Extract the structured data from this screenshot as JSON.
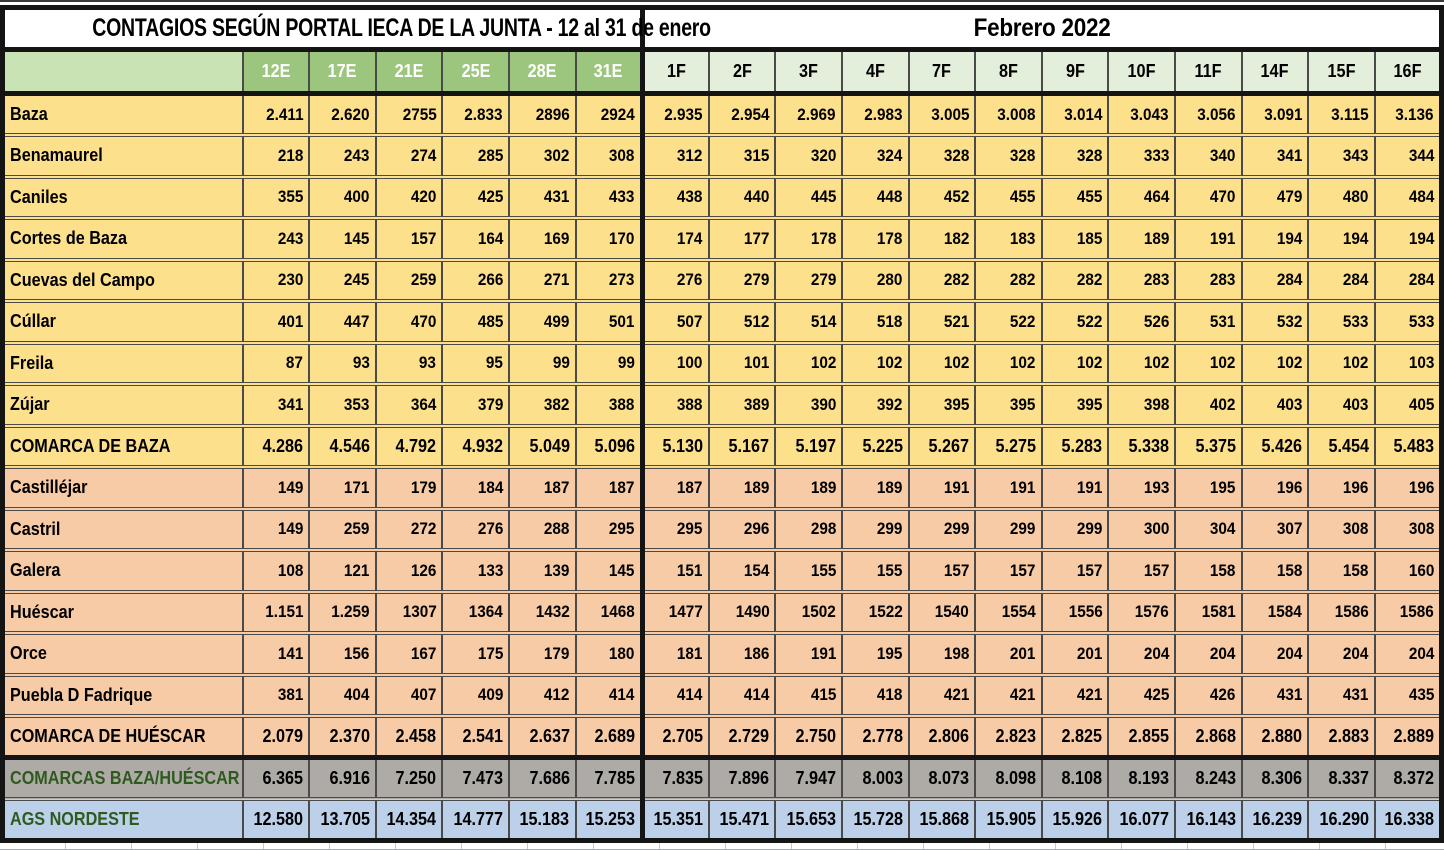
{
  "header": {
    "enero_title": "CONTAGIOS  SEGÚN PORTAL IECA DE LA JUNTA - 12 al 31 de enero",
    "febrero_title": "Febrero 2022"
  },
  "colors": {
    "enero_header_bg": "#9CC57E",
    "enero_header_text": "#FFFFFF",
    "febrero_header_bg": "#E3EFDA",
    "corner_bg": "#C9E3B4",
    "baza_bg": "#FCE08C",
    "huescar_bg": "#F7CBA5",
    "combined_bg": "#AEABA7",
    "ags_bg": "#BDD0E9",
    "total_green_text": "#2F5A1F",
    "grid_line": "#4A4A4A",
    "thick_line": "#141414",
    "text": "#000000"
  },
  "chart_data": {
    "type": "table",
    "title": "CONTAGIOS SEGÚN PORTAL IECA DE LA JUNTA - 12 al 31 de enero / Febrero 2022",
    "columns_enero": [
      "12E",
      "17E",
      "21E",
      "25E",
      "28E",
      "31E"
    ],
    "columns_febrero": [
      "1F",
      "2F",
      "3F",
      "4F",
      "7F",
      "8F",
      "9F",
      "10F",
      "11F",
      "14F",
      "15F",
      "16F"
    ],
    "rows": [
      {
        "label": "Baza",
        "style": "m-baza",
        "values": [
          "2.411",
          "2.620",
          "2755",
          "2.833",
          "2896",
          "2924",
          "2.935",
          "2.954",
          "2.969",
          "2.983",
          "3.005",
          "3.008",
          "3.014",
          "3.043",
          "3.056",
          "3.091",
          "3.115",
          "3.136"
        ]
      },
      {
        "label": "Benamaurel",
        "style": "m-baza",
        "values": [
          "218",
          "243",
          "274",
          "285",
          "302",
          "308",
          "312",
          "315",
          "320",
          "324",
          "328",
          "328",
          "328",
          "333",
          "340",
          "341",
          "343",
          "344"
        ]
      },
      {
        "label": "Caniles",
        "style": "m-baza",
        "values": [
          "355",
          "400",
          "420",
          "425",
          "431",
          "433",
          "438",
          "440",
          "445",
          "448",
          "452",
          "455",
          "455",
          "464",
          "470",
          "479",
          "480",
          "484"
        ]
      },
      {
        "label": "Cortes de Baza",
        "style": "m-baza",
        "values": [
          "243",
          "145",
          "157",
          "164",
          "169",
          "170",
          "174",
          "177",
          "178",
          "178",
          "182",
          "183",
          "185",
          "189",
          "191",
          "194",
          "194",
          "194"
        ]
      },
      {
        "label": "Cuevas del Campo",
        "style": "m-baza",
        "values": [
          "230",
          "245",
          "259",
          "266",
          "271",
          "273",
          "276",
          "279",
          "279",
          "280",
          "282",
          "282",
          "282",
          "283",
          "283",
          "284",
          "284",
          "284"
        ]
      },
      {
        "label": "Cúllar",
        "style": "m-baza",
        "values": [
          "401",
          "447",
          "470",
          "485",
          "499",
          "501",
          "507",
          "512",
          "514",
          "518",
          "521",
          "522",
          "522",
          "526",
          "531",
          "532",
          "533",
          "533"
        ]
      },
      {
        "label": "Freila",
        "style": "m-baza",
        "values": [
          "87",
          "93",
          "93",
          "95",
          "99",
          "99",
          "100",
          "101",
          "102",
          "102",
          "102",
          "102",
          "102",
          "102",
          "102",
          "102",
          "102",
          "103"
        ]
      },
      {
        "label": "Zújar",
        "style": "m-baza",
        "values": [
          "341",
          "353",
          "364",
          "379",
          "382",
          "388",
          "388",
          "389",
          "390",
          "392",
          "395",
          "395",
          "395",
          "398",
          "402",
          "403",
          "403",
          "405"
        ]
      },
      {
        "label": "COMARCA DE BAZA",
        "style": "t-baza",
        "values": [
          "4.286",
          "4.546",
          "4.792",
          "4.932",
          "5.049",
          "5.096",
          "5.130",
          "5.167",
          "5.197",
          "5.225",
          "5.267",
          "5.275",
          "5.283",
          "5.338",
          "5.375",
          "5.426",
          "5.454",
          "5.483"
        ]
      },
      {
        "label": "Castilléjar",
        "style": "m-hue",
        "values": [
          "149",
          "171",
          "179",
          "184",
          "187",
          "187",
          "187",
          "189",
          "189",
          "189",
          "191",
          "191",
          "191",
          "193",
          "195",
          "196",
          "196",
          "196"
        ]
      },
      {
        "label": "Castril",
        "style": "m-hue",
        "values": [
          "149",
          "259",
          "272",
          "276",
          "288",
          "295",
          "295",
          "296",
          "298",
          "299",
          "299",
          "299",
          "299",
          "300",
          "304",
          "307",
          "308",
          "308"
        ]
      },
      {
        "label": "Galera",
        "style": "m-hue",
        "values": [
          "108",
          "121",
          "126",
          "133",
          "139",
          "145",
          "151",
          "154",
          "155",
          "155",
          "157",
          "157",
          "157",
          "157",
          "158",
          "158",
          "158",
          "160"
        ]
      },
      {
        "label": "Huéscar",
        "style": "m-hue",
        "values": [
          "1.151",
          "1.259",
          "1307",
          "1364",
          "1432",
          "1468",
          "1477",
          "1490",
          "1502",
          "1522",
          "1540",
          "1554",
          "1556",
          "1576",
          "1581",
          "1584",
          "1586",
          "1586"
        ]
      },
      {
        "label": "Orce",
        "style": "m-hue",
        "values": [
          "141",
          "156",
          "167",
          "175",
          "179",
          "180",
          "181",
          "186",
          "191",
          "195",
          "198",
          "201",
          "201",
          "204",
          "204",
          "204",
          "204",
          "204"
        ]
      },
      {
        "label": "Puebla D Fadrique",
        "style": "m-hue",
        "values": [
          "381",
          "404",
          "407",
          "409",
          "412",
          "414",
          "414",
          "414",
          "415",
          "418",
          "421",
          "421",
          "421",
          "425",
          "426",
          "431",
          "431",
          "435"
        ]
      },
      {
        "label": "COMARCA DE HUÉSCAR",
        "style": "t-hue",
        "values": [
          "2.079",
          "2.370",
          "2.458",
          "2.541",
          "2.637",
          "2.689",
          "2.705",
          "2.729",
          "2.750",
          "2.778",
          "2.806",
          "2.823",
          "2.825",
          "2.855",
          "2.868",
          "2.880",
          "2.883",
          "2.889"
        ]
      },
      {
        "label": "COMARCAS BAZA/HUÉSCAR",
        "style": "t-comb",
        "values": [
          "6.365",
          "6.916",
          "7.250",
          "7.473",
          "7.686",
          "7.785",
          "7.835",
          "7.896",
          "7.947",
          "8.003",
          "8.073",
          "8.098",
          "8.108",
          "8.193",
          "8.243",
          "8.306",
          "8.337",
          "8.372"
        ]
      },
      {
        "label": "AGS NORDESTE",
        "style": "t-ags",
        "values": [
          "12.580",
          "13.705",
          "14.354",
          "14.777",
          "15.183",
          "15.253",
          "15.351",
          "15.471",
          "15.653",
          "15.728",
          "15.868",
          "15.905",
          "15.926",
          "16.077",
          "16.143",
          "16.239",
          "16.290",
          "16.338"
        ]
      }
    ]
  }
}
